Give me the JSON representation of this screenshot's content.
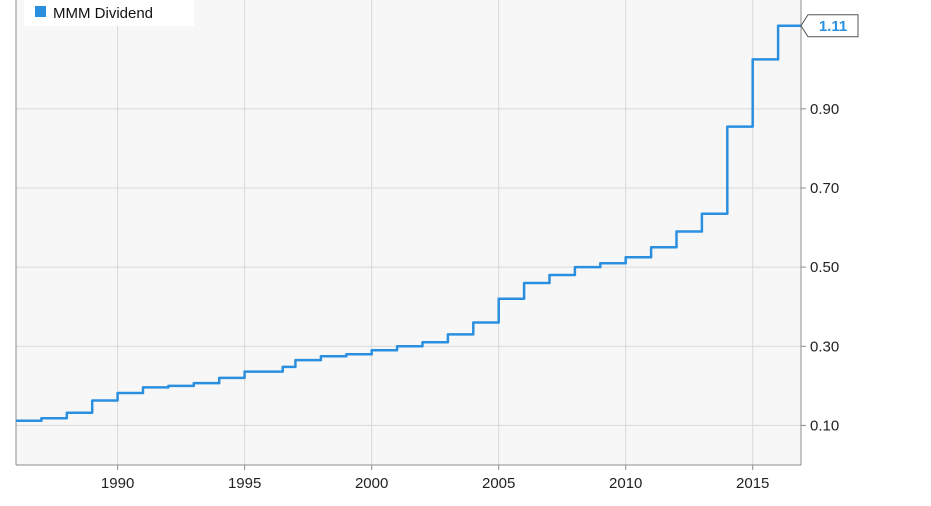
{
  "colors": {
    "series": "#2b8fe0",
    "grid": "#d9d9d9",
    "plot_background": "#f7f7f7",
    "axis": "#8c8c8c",
    "label_box_border": "#555555"
  },
  "chart_data": {
    "type": "line",
    "step": true,
    "title": "",
    "xlabel": "",
    "ylabel": "",
    "xlim": [
      1986,
      2016.9
    ],
    "ylim": [
      0,
      1.175
    ],
    "x_ticks": [
      1990,
      1995,
      2000,
      2005,
      2010,
      2015
    ],
    "x_tick_labels": [
      "1990",
      "1995",
      "2000",
      "2005",
      "2010",
      "2015"
    ],
    "y_ticks": [
      0.1,
      0.3,
      0.5,
      0.7,
      0.9
    ],
    "y_tick_labels": [
      "0.10",
      "0.30",
      "0.50",
      "0.70",
      "0.90"
    ],
    "y_axis_position": "right",
    "grid": true,
    "legend_position": "top-left",
    "last_value_label": "1.11",
    "series": [
      {
        "name": "MMM Dividend",
        "x": [
          1986,
          1987,
          1988,
          1989,
          1990,
          1991,
          1992,
          1993,
          1994,
          1995,
          1996,
          1996.5,
          1997,
          1998,
          1999,
          2000,
          2001,
          2002,
          2003,
          2004,
          2005,
          2006,
          2007,
          2008,
          2009,
          2010,
          2011,
          2012,
          2013,
          2014,
          2015,
          2016
        ],
        "y": [
          0.112,
          0.118,
          0.132,
          0.163,
          0.182,
          0.196,
          0.2,
          0.207,
          0.22,
          0.236,
          0.236,
          0.248,
          0.265,
          0.275,
          0.28,
          0.29,
          0.3,
          0.31,
          0.33,
          0.36,
          0.42,
          0.46,
          0.48,
          0.5,
          0.51,
          0.525,
          0.55,
          0.59,
          0.635,
          0.855,
          1.025,
          1.11
        ]
      }
    ]
  }
}
